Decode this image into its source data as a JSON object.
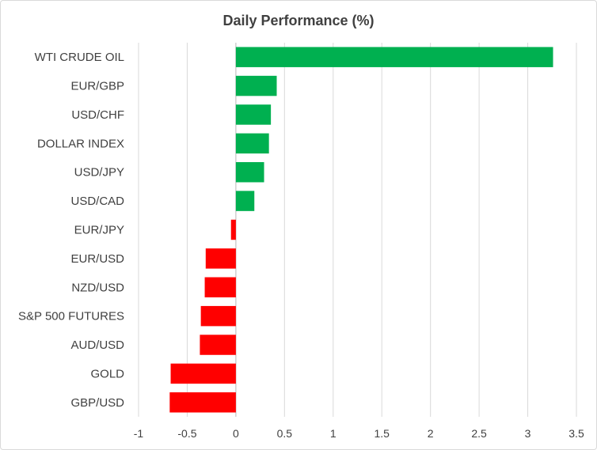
{
  "chart_data": {
    "type": "bar",
    "orientation": "horizontal",
    "title": "Daily Performance (%)",
    "xlabel": "",
    "ylabel": "",
    "xlim": [
      -1,
      3.5
    ],
    "xticks": [
      -1,
      -0.5,
      0,
      0.5,
      1,
      1.5,
      2,
      2.5,
      3,
      3.5
    ],
    "xtick_labels": [
      "-1",
      "-0.5",
      "0",
      "0.5",
      "1",
      "1.5",
      "2",
      "2.5",
      "3",
      "3.5"
    ],
    "grid": true,
    "legend": false,
    "categories": [
      "WTI CRUDE OIL",
      "EUR/GBP",
      "USD/CHF",
      "DOLLAR INDEX",
      "USD/JPY",
      "USD/CAD",
      "EUR/JPY",
      "EUR/USD",
      "NZD/USD",
      "S&P 500 FUTURES",
      "AUD/USD",
      "GOLD",
      "GBP/USD"
    ],
    "values": [
      3.26,
      0.42,
      0.36,
      0.34,
      0.29,
      0.19,
      -0.05,
      -0.31,
      -0.32,
      -0.36,
      -0.37,
      -0.67,
      -0.68
    ],
    "colors": {
      "positive": "#00b050",
      "negative": "#ff0000"
    }
  }
}
